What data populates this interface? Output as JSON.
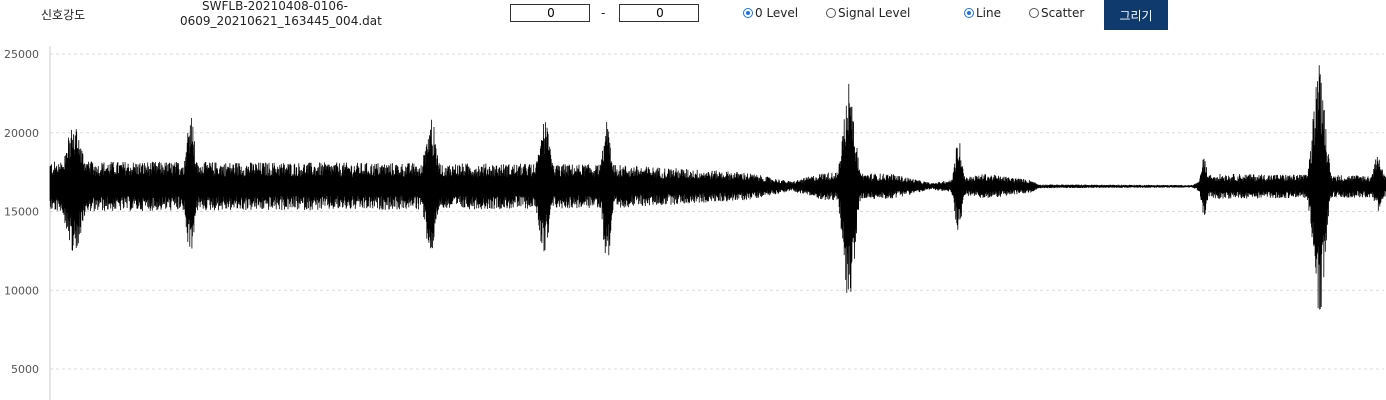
{
  "toolbar": {
    "signal_label": "신호강도",
    "filename_line1": "SWFLB-20210408-0106-",
    "filename_line2": "0609_20210621_163445_004.dat",
    "range_start": "0",
    "range_separator": "-",
    "range_end": "0",
    "zero_level_label": "0 Level",
    "signal_level_label": "Signal Level",
    "line_label": "Line",
    "scatter_label": "Scatter",
    "draw_button": "그리기",
    "selected_level": "0 Level",
    "selected_mode": "Line"
  },
  "colors": {
    "button_bg": "#0e3a6e",
    "radio_on": "#1a73e8",
    "trace": "#000000",
    "grid": "#dcdcdc"
  },
  "chart_data": {
    "type": "line",
    "title": "",
    "xlabel": "",
    "ylabel": "",
    "ylim": [
      3000,
      25500
    ],
    "yticks": [
      25000,
      20000,
      15000,
      10000,
      5000
    ],
    "grid": "horizontal dashed",
    "baseline": 16600,
    "series": [
      {
        "bursts": [
          {
            "center": 0.018,
            "width": 0.012,
            "peak": 20500,
            "trough": 12400
          },
          {
            "center": 0.105,
            "width": 0.006,
            "peak": 21300,
            "trough": 12100
          },
          {
            "center": 0.285,
            "width": 0.008,
            "peak": 21100,
            "trough": 12200
          },
          {
            "center": 0.37,
            "width": 0.008,
            "peak": 20800,
            "trough": 12400
          },
          {
            "center": 0.417,
            "width": 0.006,
            "peak": 20700,
            "trough": 11800
          },
          {
            "center": 0.598,
            "width": 0.008,
            "peak": 23500,
            "trough": 9100
          },
          {
            "center": 0.68,
            "width": 0.005,
            "peak": 19600,
            "trough": 13600
          },
          {
            "center": 0.864,
            "width": 0.004,
            "peak": 18500,
            "trough": 14500
          },
          {
            "center": 0.95,
            "width": 0.008,
            "peak": 24600,
            "trough": 8300
          },
          {
            "center": 0.994,
            "width": 0.006,
            "peak": 18700,
            "trough": 15000
          }
        ],
        "envelope": [
          {
            "x": 0.0,
            "amp": 1600
          },
          {
            "x": 0.25,
            "amp": 1500
          },
          {
            "x": 0.42,
            "amp": 1400
          },
          {
            "x": 0.52,
            "amp": 900
          },
          {
            "x": 0.555,
            "amp": 300
          },
          {
            "x": 0.58,
            "amp": 900
          },
          {
            "x": 0.63,
            "amp": 800
          },
          {
            "x": 0.66,
            "amp": 200
          },
          {
            "x": 0.7,
            "amp": 800
          },
          {
            "x": 0.735,
            "amp": 400
          },
          {
            "x": 0.74,
            "amp": 120
          },
          {
            "x": 0.855,
            "amp": 80
          },
          {
            "x": 0.87,
            "amp": 800
          },
          {
            "x": 1.0,
            "amp": 700
          }
        ]
      }
    ]
  }
}
